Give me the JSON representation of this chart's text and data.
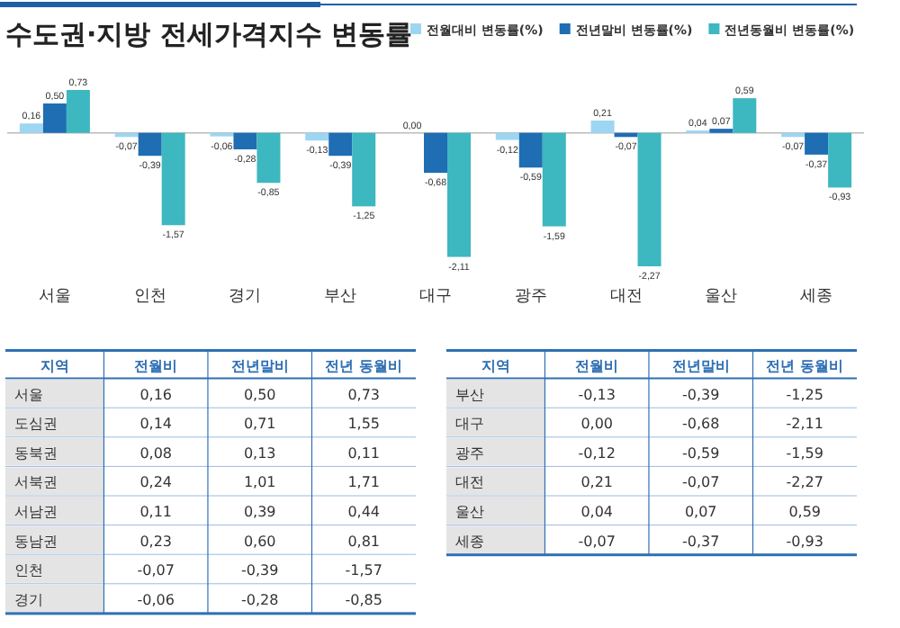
{
  "chart_data": [
    {
      "type": "bar",
      "title": "수도권·지방 전세가격지수 변동률",
      "legend": "top right",
      "categories": [
        "서울",
        "인천",
        "경기",
        "부산",
        "대구",
        "광주",
        "대전",
        "울산",
        "세종"
      ],
      "series": [
        {
          "name": "전월대비 변동률(%)",
          "color": "#9dd6f2",
          "values": [
            0.16,
            -0.07,
            -0.06,
            -0.13,
            0.0,
            -0.12,
            0.21,
            0.04,
            -0.07
          ],
          "value_labels": [
            "0,16",
            "-0,07",
            "-0,06",
            "-0,13",
            "0,00",
            "-0,12",
            "0,21",
            "0,04",
            "-0,07"
          ]
        },
        {
          "name": "전년말비 변동률(%)",
          "color": "#1f6db3",
          "values": [
            0.5,
            -0.39,
            -0.28,
            -0.39,
            -0.68,
            -0.59,
            -0.07,
            0.07,
            -0.37
          ],
          "value_labels": [
            "0,50",
            "-0,39",
            "-0,28",
            "-0,39",
            "-0,68",
            "-0,59",
            "-0,07",
            "0,07",
            "-0,37"
          ]
        },
        {
          "name": "전년동월비 변동률(%)",
          "color": "#3db7c0",
          "values": [
            0.73,
            -1.57,
            -0.85,
            -1.25,
            -2.11,
            -1.59,
            -2.27,
            0.59,
            -0.93
          ],
          "value_labels": [
            "0,73",
            "-1,57",
            "-0,85",
            "-1,25",
            "-2,11",
            "-1,59",
            "-2,27",
            "0,59",
            "-0,93"
          ]
        }
      ]
    },
    {
      "type": "other",
      "xlabel": "지역",
      "categories": [
        "서울",
        "도심권",
        "동북권",
        "서북권",
        "서남권",
        "동남권",
        "인천",
        "경기"
      ],
      "series": [
        {
          "name": "전월비",
          "values": [
            0.16,
            0.14,
            0.08,
            0.24,
            0.11,
            0.23,
            -0.07,
            -0.06
          ],
          "value_labels": [
            "0,16",
            "0,14",
            "0,08",
            "0,24",
            "0,11",
            "0,23",
            "-0,07",
            "-0,06"
          ]
        },
        {
          "name": "전년말비",
          "values": [
            0.5,
            0.71,
            0.13,
            1.01,
            0.39,
            0.6,
            -0.39,
            -0.28
          ],
          "value_labels": [
            "0,50",
            "0,71",
            "0,13",
            "1,01",
            "0,39",
            "0,60",
            "-0,39",
            "-0,28"
          ]
        },
        {
          "name": "전년 동월비",
          "values": [
            0.73,
            1.55,
            0.11,
            1.71,
            0.44,
            0.81,
            -1.57,
            -0.85
          ],
          "value_labels": [
            "0,73",
            "1,55",
            "0,11",
            "1,71",
            "0,44",
            "0,81",
            "-1,57",
            "-0,85"
          ]
        }
      ]
    },
    {
      "type": "other",
      "xlabel": "지역",
      "categories": [
        "부산",
        "대구",
        "광주",
        "대전",
        "울산",
        "세종"
      ],
      "series": [
        {
          "name": "전월비",
          "values": [
            -0.13,
            0.0,
            -0.12,
            0.21,
            0.04,
            -0.07
          ],
          "value_labels": [
            "-0,13",
            "0,00",
            "-0,12",
            "0,21",
            "0,04",
            "-0,07"
          ]
        },
        {
          "name": "전년말비",
          "values": [
            -0.39,
            -0.68,
            -0.59,
            -0.07,
            0.07,
            -0.37
          ],
          "value_labels": [
            "-0,39",
            "-0,68",
            "-0,59",
            "-0,07",
            "0,07",
            "-0,37"
          ]
        },
        {
          "name": "전년 동월비",
          "values": [
            -1.25,
            -2.11,
            -1.59,
            -2.27,
            0.59,
            -0.93
          ],
          "value_labels": [
            "-1,25",
            "-2,11",
            "-1,59",
            "-2,27",
            "0,59",
            "-0,93"
          ]
        }
      ]
    }
  ]
}
